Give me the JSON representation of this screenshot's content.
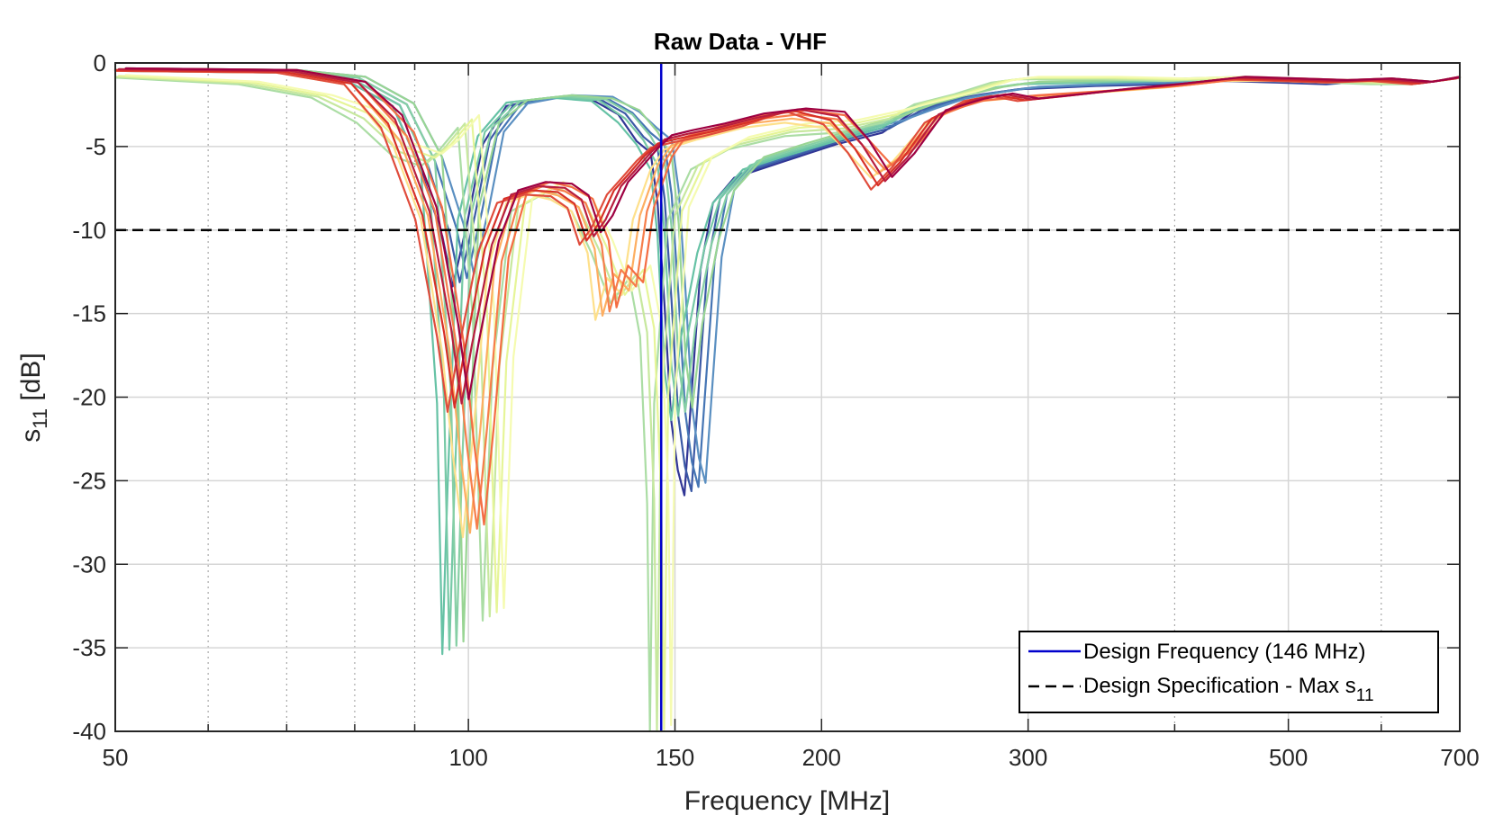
{
  "chart_data": {
    "type": "line",
    "title": "Raw Data - VHF",
    "xlabel": "Frequency [MHz]",
    "ylabel_main": "s",
    "ylabel_sub": "11",
    "ylabel_unit": " [dB]",
    "x_scale": "log",
    "xlim": [
      50,
      700
    ],
    "ylim": [
      -40,
      0
    ],
    "x_ticks": [
      50,
      100,
      150,
      200,
      300,
      500,
      700
    ],
    "x_tick_labels": [
      "50",
      "100",
      "150",
      "200",
      "300",
      "500",
      "700"
    ],
    "x_minor_ticks": [
      60,
      70,
      80,
      90,
      400,
      600
    ],
    "y_ticks": [
      0,
      -5,
      -10,
      -15,
      -20,
      -25,
      -30,
      -35,
      -40
    ],
    "y_tick_labels": [
      "0",
      "-5",
      "-10",
      "-15",
      "-20",
      "-25",
      "-30",
      "-35",
      "-40"
    ],
    "grid": true,
    "legend_position": "bottom-right",
    "design_frequency": 146,
    "design_spec": -10,
    "legend": {
      "entry1": "Design Frequency (146 MHz)",
      "entry2_main": "Design Specification - Max s",
      "entry2_sub": "11"
    },
    "series_groups": [
      {
        "colors": [
          "#313695",
          "#3b5aa6",
          "#4575b4",
          "#5a8fc1"
        ],
        "points": [
          [
            50,
            -0.4
          ],
          [
            70,
            -0.5
          ],
          [
            80,
            -0.9
          ],
          [
            88,
            -2.5
          ],
          [
            93,
            -6
          ],
          [
            97,
            -10
          ],
          [
            99,
            -13
          ],
          [
            102,
            -9
          ],
          [
            105,
            -4.5
          ],
          [
            110,
            -2.5
          ],
          [
            120,
            -2
          ],
          [
            130,
            -2.1
          ],
          [
            137,
            -3
          ],
          [
            142,
            -4.3
          ],
          [
            146,
            -5
          ],
          [
            148,
            -8
          ],
          [
            150,
            -14
          ],
          [
            152,
            -21
          ],
          [
            154,
            -24
          ],
          [
            156,
            -25.5
          ],
          [
            158,
            -20
          ],
          [
            161,
            -12
          ],
          [
            165,
            -8
          ],
          [
            172,
            -6.5
          ],
          [
            190,
            -5.5
          ],
          [
            210,
            -4.5
          ],
          [
            230,
            -3.8
          ],
          [
            245,
            -2.8
          ],
          [
            260,
            -2.2
          ],
          [
            280,
            -1.8
          ],
          [
            300,
            -1.5
          ],
          [
            350,
            -1.3
          ],
          [
            400,
            -1.2
          ],
          [
            450,
            -1.0
          ],
          [
            500,
            -1.1
          ],
          [
            550,
            -1.2
          ],
          [
            600,
            -1.0
          ],
          [
            650,
            -1.2
          ],
          [
            700,
            -0.9
          ]
        ]
      },
      {
        "colors": [
          "#66c2a5",
          "#76c9a6",
          "#86cfa5",
          "#99d594"
        ],
        "points": [
          [
            50,
            -0.4
          ],
          [
            70,
            -0.5
          ],
          [
            80,
            -0.9
          ],
          [
            88,
            -2.5
          ],
          [
            93,
            -6
          ],
          [
            96,
            -20
          ],
          [
            97,
            -35
          ],
          [
            98,
            -25
          ],
          [
            100,
            -9
          ],
          [
            104,
            -4
          ],
          [
            110,
            -2.3
          ],
          [
            120,
            -2
          ],
          [
            130,
            -2.2
          ],
          [
            137,
            -3.2
          ],
          [
            142,
            -4.5
          ],
          [
            146,
            -6
          ],
          [
            148,
            -10
          ],
          [
            150,
            -18
          ],
          [
            152,
            -21
          ],
          [
            155,
            -16
          ],
          [
            160,
            -11
          ],
          [
            165,
            -8
          ],
          [
            175,
            -6
          ],
          [
            190,
            -5.2
          ],
          [
            210,
            -4.3
          ],
          [
            230,
            -3.5
          ],
          [
            245,
            -2.5
          ],
          [
            260,
            -2
          ],
          [
            280,
            -1.5
          ],
          [
            300,
            -1.2
          ],
          [
            350,
            -1.1
          ],
          [
            400,
            -1.0
          ],
          [
            450,
            -0.9
          ],
          [
            500,
            -1.0
          ],
          [
            550,
            -1.1
          ],
          [
            600,
            -1.0
          ],
          [
            650,
            -1.2
          ],
          [
            700,
            -0.9
          ]
        ]
      },
      {
        "colors": [
          "#abdda4",
          "#c7e89e",
          "#e6f598",
          "#f5fbb0"
        ],
        "points": [
          [
            50,
            -0.8
          ],
          [
            65,
            -1.2
          ],
          [
            75,
            -2.0
          ],
          [
            82,
            -3.2
          ],
          [
            88,
            -5.2
          ],
          [
            93,
            -5.8
          ],
          [
            96,
            -5
          ],
          [
            100,
            -3.5
          ],
          [
            103,
            -15
          ],
          [
            105,
            -33
          ],
          [
            107,
            -18
          ],
          [
            111,
            -8.5
          ],
          [
            118,
            -7.5
          ],
          [
            125,
            -8.5
          ],
          [
            130,
            -11
          ],
          [
            135,
            -14
          ],
          [
            140,
            -12.5
          ],
          [
            143,
            -16
          ],
          [
            145,
            -26
          ],
          [
            145.8,
            -40
          ],
          [
            147,
            -20
          ],
          [
            151,
            -9
          ],
          [
            158,
            -6
          ],
          [
            170,
            -4.8
          ],
          [
            190,
            -4
          ],
          [
            210,
            -3.8
          ],
          [
            230,
            -3.2
          ],
          [
            245,
            -2.4
          ],
          [
            265,
            -1.8
          ],
          [
            285,
            -1.1
          ],
          [
            300,
            -0.9
          ],
          [
            350,
            -0.9
          ],
          [
            400,
            -1.0
          ],
          [
            450,
            -0.9
          ],
          [
            500,
            -1.0
          ],
          [
            550,
            -1.1
          ],
          [
            600,
            -1.2
          ],
          [
            650,
            -1.2
          ],
          [
            700,
            -0.9
          ]
        ]
      },
      {
        "colors": [
          "#fee08b",
          "#fdae61",
          "#f67e4b",
          "#f46d43"
        ],
        "points": [
          [
            50,
            -0.4
          ],
          [
            70,
            -0.5
          ],
          [
            80,
            -1.2
          ],
          [
            88,
            -4.5
          ],
          [
            93,
            -9
          ],
          [
            97,
            -17
          ],
          [
            99,
            -23
          ],
          [
            101,
            -28
          ],
          [
            103,
            -22
          ],
          [
            106,
            -12
          ],
          [
            110,
            -8
          ],
          [
            115,
            -7.5
          ],
          [
            120,
            -7.8
          ],
          [
            125,
            -8.5
          ],
          [
            129,
            -11
          ],
          [
            131,
            -15
          ],
          [
            134,
            -12.5
          ],
          [
            138,
            -13.5
          ],
          [
            141,
            -9
          ],
          [
            146,
            -6
          ],
          [
            150,
            -4.8
          ],
          [
            160,
            -4.2
          ],
          [
            175,
            -3.5
          ],
          [
            190,
            -3.2
          ],
          [
            205,
            -3.5
          ],
          [
            215,
            -5
          ],
          [
            225,
            -6.5
          ],
          [
            235,
            -5.5
          ],
          [
            250,
            -3.3
          ],
          [
            270,
            -2.3
          ],
          [
            300,
            -2.0
          ],
          [
            350,
            -1.7
          ],
          [
            400,
            -1.4
          ],
          [
            450,
            -1.0
          ],
          [
            500,
            -1.0
          ],
          [
            550,
            -1.1
          ],
          [
            600,
            -1.0
          ],
          [
            650,
            -1.2
          ],
          [
            700,
            -0.9
          ]
        ]
      },
      {
        "colors": [
          "#e04c3c",
          "#d73027",
          "#b81e3f",
          "#9e0142"
        ],
        "points": [
          [
            50,
            -0.4
          ],
          [
            70,
            -0.5
          ],
          [
            80,
            -1.2
          ],
          [
            86,
            -3.5
          ],
          [
            92,
            -9
          ],
          [
            96,
            -16
          ],
          [
            98,
            -20.5
          ],
          [
            100,
            -17
          ],
          [
            104,
            -11
          ],
          [
            108,
            -8
          ],
          [
            114,
            -7.5
          ],
          [
            120,
            -7.6
          ],
          [
            124,
            -8.3
          ],
          [
            127,
            -10.5
          ],
          [
            130,
            -9.5
          ],
          [
            134,
            -7.5
          ],
          [
            138,
            -6.5
          ],
          [
            142,
            -5.5
          ],
          [
            146,
            -4.7
          ],
          [
            152,
            -4.4
          ],
          [
            162,
            -4.0
          ],
          [
            175,
            -3.4
          ],
          [
            190,
            -2.8
          ],
          [
            205,
            -3.3
          ],
          [
            215,
            -5
          ],
          [
            225,
            -7.2
          ],
          [
            235,
            -5.8
          ],
          [
            250,
            -3.2
          ],
          [
            270,
            -2.2
          ],
          [
            285,
            -1.9
          ],
          [
            300,
            -2.2
          ],
          [
            330,
            -1.9
          ],
          [
            360,
            -1.6
          ],
          [
            400,
            -1.3
          ],
          [
            450,
            -0.9
          ],
          [
            500,
            -1.0
          ],
          [
            550,
            -1.1
          ],
          [
            600,
            -1.0
          ],
          [
            650,
            -1.2
          ],
          [
            700,
            -0.9
          ]
        ]
      }
    ]
  }
}
